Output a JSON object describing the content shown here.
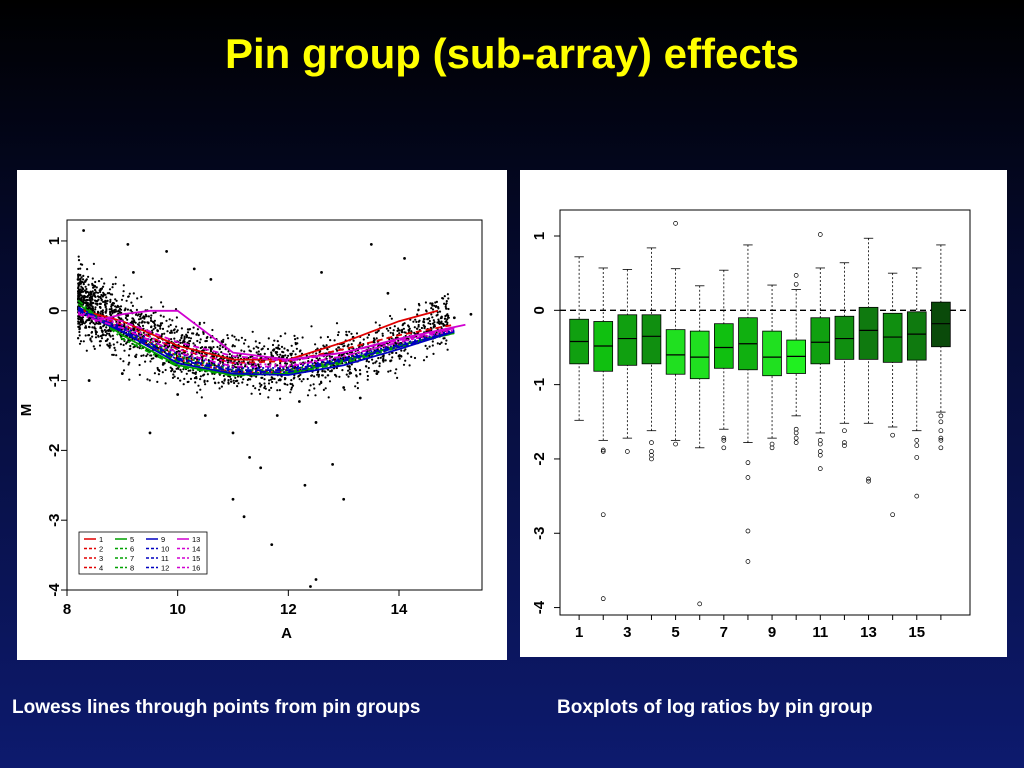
{
  "slide": {
    "title": "Pin group (sub-array) effects",
    "caption_left": "Lowess lines through points from pin groups",
    "caption_right": "Boxplots of log ratios by pin group"
  },
  "colors": {
    "title": "#ffff00",
    "caption": "#ffffff",
    "background_top": "#000000",
    "background_bottom": "#0d1a6e"
  },
  "chart_data": [
    {
      "type": "scatter",
      "xlabel": "A",
      "ylabel": "M",
      "xlim": [
        8,
        15.5
      ],
      "ylim": [
        -4,
        1.3
      ],
      "x_ticks": [
        "8",
        "10",
        "12",
        "14"
      ],
      "y_ticks": [
        "1",
        "0",
        "-1",
        "-2",
        "-3",
        "-4"
      ],
      "legend_position": "bottom-left",
      "points": [
        [
          8.3,
          1.15
        ],
        [
          9.1,
          0.95
        ],
        [
          9.8,
          0.85
        ],
        [
          13.5,
          0.95
        ],
        [
          14.1,
          0.75
        ],
        [
          12.6,
          0.55
        ],
        [
          8.2,
          0.45
        ],
        [
          8.5,
          0.35
        ],
        [
          9.2,
          0.55
        ],
        [
          10.3,
          0.6
        ],
        [
          10.6,
          0.45
        ],
        [
          13.8,
          0.25
        ],
        [
          14.6,
          0.1
        ],
        [
          15.0,
          -0.1
        ],
        [
          15.3,
          -0.05
        ],
        [
          14.2,
          -0.45
        ],
        [
          13.0,
          -1.1
        ],
        [
          12.5,
          -1.6
        ],
        [
          11.0,
          -1.75
        ],
        [
          9.5,
          -1.75
        ],
        [
          11.3,
          -2.1
        ],
        [
          11.5,
          -2.25
        ],
        [
          12.3,
          -2.5
        ],
        [
          12.8,
          -2.2
        ],
        [
          11.0,
          -2.7
        ],
        [
          11.2,
          -2.95
        ],
        [
          13.0,
          -2.7
        ],
        [
          11.7,
          -3.35
        ],
        [
          12.5,
          -3.85
        ],
        [
          12.4,
          -3.95
        ],
        [
          8.4,
          -1.0
        ],
        [
          9.0,
          -0.9
        ],
        [
          10.0,
          -1.2
        ],
        [
          10.5,
          -1.5
        ],
        [
          11.8,
          -1.5
        ],
        [
          12.2,
          -1.3
        ],
        [
          13.3,
          -1.25
        ],
        [
          13.6,
          -0.9
        ],
        [
          14.0,
          -0.65
        ],
        [
          14.5,
          -0.3
        ]
      ],
      "series": [
        {
          "name": "1",
          "color": "#e00000",
          "dash": "solid",
          "x": [
            8.2,
            9,
            10,
            11,
            12,
            13,
            14,
            14.7
          ],
          "y": [
            0.02,
            -0.15,
            -0.5,
            -0.7,
            -0.7,
            -0.45,
            -0.15,
            0.0
          ]
        },
        {
          "name": "2",
          "color": "#e00000",
          "dash": "dashed",
          "x": [
            8.2,
            9,
            10,
            11,
            12,
            13,
            14,
            15
          ],
          "y": [
            0.0,
            -0.2,
            -0.55,
            -0.75,
            -0.72,
            -0.55,
            -0.35,
            -0.2
          ]
        },
        {
          "name": "3",
          "color": "#e00000",
          "dash": "dotted",
          "x": [
            8.2,
            9,
            10,
            11,
            12,
            13,
            14,
            15
          ],
          "y": [
            0.05,
            -0.25,
            -0.65,
            -0.85,
            -0.85,
            -0.7,
            -0.5,
            -0.3
          ]
        },
        {
          "name": "4",
          "color": "#e00000",
          "dash": "dashdot",
          "x": [
            8.2,
            9,
            10,
            11,
            12,
            13,
            14,
            15
          ],
          "y": [
            0.0,
            -0.3,
            -0.7,
            -0.88,
            -0.88,
            -0.72,
            -0.5,
            -0.3
          ]
        },
        {
          "name": "5",
          "color": "#00a000",
          "dash": "solid",
          "x": [
            8.2,
            9,
            10,
            11,
            12,
            13,
            14,
            15
          ],
          "y": [
            0.1,
            -0.35,
            -0.78,
            -0.92,
            -0.9,
            -0.72,
            -0.5,
            -0.3
          ]
        },
        {
          "name": "6",
          "color": "#00a000",
          "dash": "dashed",
          "x": [
            8.2,
            9,
            10,
            11,
            12,
            13,
            14,
            15
          ],
          "y": [
            0.05,
            -0.3,
            -0.72,
            -0.9,
            -0.88,
            -0.72,
            -0.5,
            -0.32
          ]
        },
        {
          "name": "7",
          "color": "#00a000",
          "dash": "dotted",
          "x": [
            8.2,
            9,
            10,
            11,
            12,
            13,
            14,
            15
          ],
          "y": [
            0.0,
            -0.25,
            -0.65,
            -0.85,
            -0.85,
            -0.7,
            -0.5,
            -0.3
          ]
        },
        {
          "name": "8",
          "color": "#00a000",
          "dash": "dashdot",
          "x": [
            8.2,
            9,
            10,
            11,
            12,
            13,
            14,
            15
          ],
          "y": [
            0.15,
            -0.4,
            -0.8,
            -0.93,
            -0.9,
            -0.75,
            -0.52,
            -0.32
          ]
        },
        {
          "name": "9",
          "color": "#0000c0",
          "dash": "solid",
          "x": [
            8.2,
            9,
            10,
            11,
            12,
            13,
            14,
            15
          ],
          "y": [
            0.0,
            -0.3,
            -0.75,
            -0.9,
            -0.92,
            -0.78,
            -0.55,
            -0.3
          ]
        },
        {
          "name": "10",
          "color": "#0000c0",
          "dash": "dashed",
          "x": [
            8.2,
            9,
            10,
            11,
            12,
            13,
            14,
            15
          ],
          "y": [
            0.02,
            -0.25,
            -0.68,
            -0.85,
            -0.85,
            -0.7,
            -0.5,
            -0.3
          ]
        },
        {
          "name": "11",
          "color": "#0000c0",
          "dash": "dotted",
          "x": [
            8.2,
            9,
            10,
            11,
            12,
            13,
            14,
            15
          ],
          "y": [
            0.0,
            -0.22,
            -0.62,
            -0.82,
            -0.82,
            -0.68,
            -0.48,
            -0.28
          ]
        },
        {
          "name": "12",
          "color": "#0000c0",
          "dash": "dashdot",
          "x": [
            8.2,
            9,
            10,
            11,
            12,
            13,
            14,
            15
          ],
          "y": [
            0.05,
            -0.28,
            -0.7,
            -0.87,
            -0.88,
            -0.72,
            -0.52,
            -0.3
          ]
        },
        {
          "name": "13",
          "color": "#d000d0",
          "dash": "solid",
          "x": [
            8.5,
            9,
            9.5,
            10,
            10.5,
            11,
            12,
            13,
            14,
            15.2
          ],
          "y": [
            -0.15,
            -0.05,
            0.0,
            0.0,
            -0.3,
            -0.6,
            -0.7,
            -0.6,
            -0.4,
            -0.2
          ]
        },
        {
          "name": "14",
          "color": "#d000d0",
          "dash": "dashed",
          "x": [
            8.2,
            9,
            10,
            11,
            12,
            13,
            14,
            15
          ],
          "y": [
            -0.05,
            -0.15,
            -0.45,
            -0.65,
            -0.72,
            -0.6,
            -0.42,
            -0.25
          ]
        },
        {
          "name": "15",
          "color": "#d000d0",
          "dash": "dotted",
          "x": [
            8.2,
            9,
            10,
            11,
            12,
            13,
            14,
            15
          ],
          "y": [
            -0.02,
            -0.2,
            -0.55,
            -0.75,
            -0.78,
            -0.65,
            -0.45,
            -0.28
          ]
        },
        {
          "name": "16",
          "color": "#d000d0",
          "dash": "dashdot",
          "x": [
            8.2,
            9,
            10,
            11,
            12,
            13,
            14,
            15
          ],
          "y": [
            -0.05,
            -0.25,
            -0.6,
            -0.8,
            -0.8,
            -0.65,
            -0.45,
            -0.25
          ]
        }
      ]
    },
    {
      "type": "box",
      "categories": [
        "1",
        "2",
        "3",
        "4",
        "5",
        "6",
        "7",
        "8",
        "9",
        "10",
        "11",
        "12",
        "13",
        "14",
        "15",
        "16"
      ],
      "x_tick_labels": [
        "1",
        "3",
        "5",
        "7",
        "9",
        "11",
        "13",
        "15"
      ],
      "y_ticks": [
        "1",
        "0",
        "-1",
        "-2",
        "-3",
        "-4"
      ],
      "ylim": [
        -4.1,
        1.35
      ],
      "reference_line": 0,
      "boxes": [
        {
          "q1": -0.72,
          "median": -0.42,
          "q3": -0.12,
          "low": -1.48,
          "high": 0.72,
          "color": "#10a010",
          "outliers": []
        },
        {
          "q1": -0.82,
          "median": -0.48,
          "q3": -0.15,
          "low": -1.75,
          "high": 0.57,
          "color": "#10c010",
          "outliers": [
            -1.88,
            -1.9,
            -2.75,
            -3.88
          ]
        },
        {
          "q1": -0.74,
          "median": -0.38,
          "q3": -0.06,
          "low": -1.72,
          "high": 0.55,
          "color": "#10a010",
          "outliers": [
            -1.9
          ]
        },
        {
          "q1": -0.72,
          "median": -0.35,
          "q3": -0.06,
          "low": -1.62,
          "high": 0.84,
          "color": "#108f10",
          "outliers": [
            -1.78,
            -1.9,
            -1.95,
            -2.0
          ]
        },
        {
          "q1": -0.86,
          "median": -0.6,
          "q3": -0.26,
          "low": -1.75,
          "high": 0.56,
          "color": "#20e020",
          "outliers": [
            -1.8,
            1.17
          ]
        },
        {
          "q1": -0.92,
          "median": -0.63,
          "q3": -0.28,
          "low": -1.85,
          "high": 0.33,
          "color": "#20e020",
          "outliers": [
            -3.95
          ]
        },
        {
          "q1": -0.78,
          "median": -0.5,
          "q3": -0.18,
          "low": -1.6,
          "high": 0.54,
          "color": "#10c010",
          "outliers": [
            -1.72,
            -1.75,
            -1.85
          ]
        },
        {
          "q1": -0.8,
          "median": -0.45,
          "q3": -0.1,
          "low": -1.78,
          "high": 0.88,
          "color": "#10b010",
          "outliers": [
            -2.05,
            -2.25,
            -2.97,
            -3.38
          ]
        },
        {
          "q1": -0.88,
          "median": -0.63,
          "q3": -0.28,
          "low": -1.72,
          "high": 0.34,
          "color": "#20e020",
          "outliers": [
            -1.8,
            -1.85
          ]
        },
        {
          "q1": -0.85,
          "median": -0.62,
          "q3": -0.4,
          "low": -1.42,
          "high": 0.28,
          "color": "#20f020",
          "outliers": [
            -1.6,
            -1.65,
            -1.72,
            -1.78,
            0.35,
            0.47
          ]
        },
        {
          "q1": -0.72,
          "median": -0.43,
          "q3": -0.1,
          "low": -1.65,
          "high": 0.57,
          "color": "#10a010",
          "outliers": [
            -1.75,
            -1.8,
            -1.9,
            -1.95,
            -2.13,
            1.02
          ]
        },
        {
          "q1": -0.66,
          "median": -0.38,
          "q3": -0.08,
          "low": -1.52,
          "high": 0.64,
          "color": "#108f10",
          "outliers": [
            -1.62,
            -1.78,
            -1.82
          ]
        },
        {
          "q1": -0.66,
          "median": -0.27,
          "q3": 0.04,
          "low": -1.52,
          "high": 0.97,
          "color": "#0f7a0f",
          "outliers": [
            -2.27,
            -2.3
          ]
        },
        {
          "q1": -0.7,
          "median": -0.36,
          "q3": -0.04,
          "low": -1.57,
          "high": 0.5,
          "color": "#108f10",
          "outliers": [
            -1.68,
            -2.75
          ]
        },
        {
          "q1": -0.67,
          "median": -0.32,
          "q3": -0.02,
          "low": -1.62,
          "high": 0.57,
          "color": "#0f7a0f",
          "outliers": [
            -1.75,
            -1.82,
            -1.98,
            -2.5
          ]
        },
        {
          "q1": -0.49,
          "median": -0.18,
          "q3": 0.11,
          "low": -1.37,
          "high": 0.88,
          "color": "#0a4a0a",
          "outliers": [
            -1.42,
            -1.5,
            -1.62,
            -1.72,
            -1.75,
            -1.85
          ]
        }
      ]
    }
  ]
}
